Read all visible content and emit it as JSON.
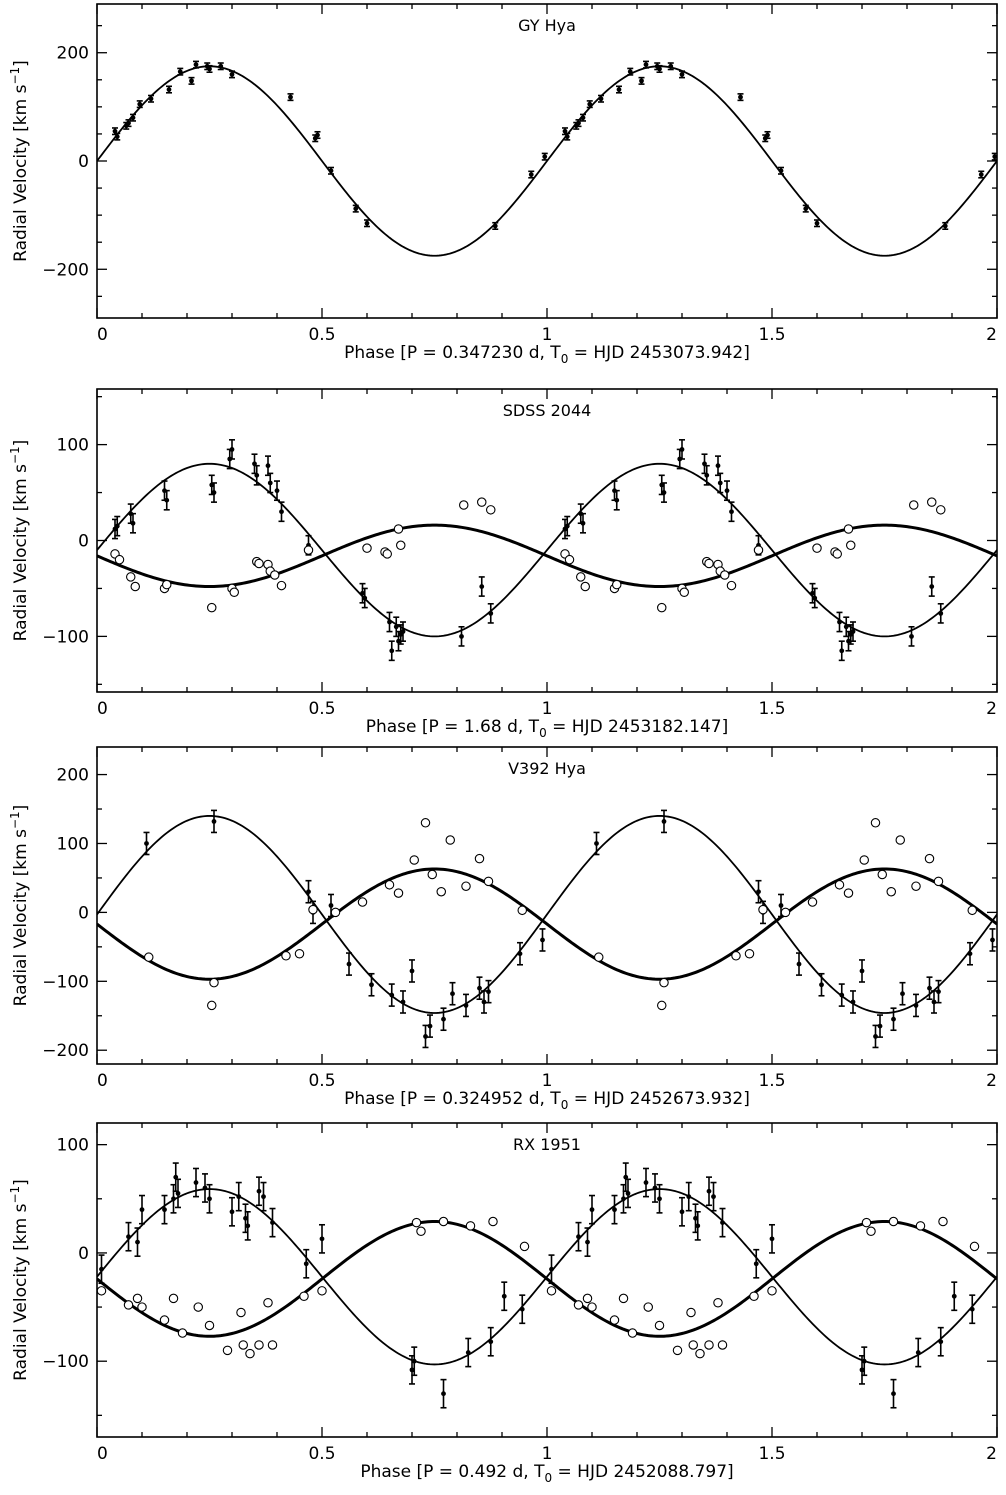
{
  "chart_data": [
    {
      "type": "scatter",
      "title": "GY Hya",
      "xlabel": {
        "main": "Phase [P = 0.347230 d, T",
        "sub": "0",
        "rest": " = HJD 2453073.942]"
      },
      "ylabel": {
        "main": "Radial Velocity [km s",
        "sup": "−1",
        "rest": "]"
      },
      "xlim": [
        0,
        2
      ],
      "ylim": [
        -290,
        290
      ],
      "xticks": [
        0,
        0.5,
        1,
        1.5,
        2
      ],
      "xticklabels": [
        "0",
        "0.5",
        "1",
        "1.5",
        "2"
      ],
      "yticks": [
        -200,
        0,
        200
      ],
      "yticklabels": [
        "−200",
        "0",
        "200"
      ],
      "grid": false,
      "curves": [
        {
          "gamma": 0,
          "K": 175,
          "phase_offset": 0,
          "style": "thin"
        }
      ],
      "series": [
        {
          "marker": "filled-errorbar",
          "x": [
            0.04,
            0.045,
            0.065,
            0.07,
            0.08,
            0.095,
            0.12,
            0.16,
            0.185,
            0.21,
            0.22,
            0.245,
            0.25,
            0.275,
            0.3,
            0.43,
            0.485,
            0.49,
            0.52,
            0.575,
            0.6,
            0.885,
            0.965,
            0.995,
            1.04,
            1.045,
            1.065,
            1.07,
            1.08,
            1.095,
            1.12,
            1.16,
            1.185,
            1.21,
            1.22,
            1.245,
            1.25,
            1.275,
            1.3,
            1.43,
            1.485,
            1.49,
            1.52,
            1.575,
            1.6,
            1.885,
            1.965,
            1.995
          ],
          "y": [
            55,
            45,
            65,
            70,
            80,
            105,
            115,
            132,
            165,
            148,
            178,
            175,
            170,
            175,
            160,
            118,
            42,
            48,
            -18,
            -88,
            -115,
            -120,
            -25,
            8,
            55,
            45,
            65,
            70,
            80,
            105,
            115,
            132,
            165,
            148,
            178,
            175,
            170,
            175,
            160,
            118,
            42,
            48,
            -18,
            -88,
            -115,
            -120,
            -25,
            8
          ],
          "err": 6
        }
      ]
    },
    {
      "type": "scatter",
      "title": "SDSS 2044",
      "xlabel": {
        "main": "Phase [P = 1.68 d, T",
        "sub": "0",
        "rest": " = HJD 2453182.147]"
      },
      "ylabel": {
        "main": "Radial Velocity [km s",
        "sup": "−1",
        "rest": "]"
      },
      "xlim": [
        0,
        2
      ],
      "ylim": [
        -158,
        158
      ],
      "xticks": [
        0,
        0.5,
        1,
        1.5,
        2
      ],
      "xticklabels": [
        "0",
        "0.5",
        "1",
        "1.5",
        "2"
      ],
      "yticks": [
        -100,
        0,
        100
      ],
      "yticklabels": [
        "−100",
        "0",
        "100"
      ],
      "grid": false,
      "curves": [
        {
          "gamma": -10,
          "K": 90,
          "phase_offset": 0,
          "style": "thin"
        },
        {
          "gamma": -16,
          "K": 32,
          "phase_offset": 0.5,
          "style": "thick"
        }
      ],
      "series": [
        {
          "marker": "filled-errorbar",
          "x": [
            0.04,
            0.045,
            0.075,
            0.08,
            0.15,
            0.155,
            0.255,
            0.26,
            0.295,
            0.3,
            0.35,
            0.355,
            0.38,
            0.385,
            0.4,
            0.41,
            0.47,
            0.59,
            0.595,
            0.65,
            0.655,
            0.665,
            0.67,
            0.675,
            0.68,
            0.81,
            0.855,
            0.875,
            1.04,
            1.045,
            1.075,
            1.08,
            1.15,
            1.155,
            1.255,
            1.26,
            1.295,
            1.3,
            1.35,
            1.355,
            1.38,
            1.385,
            1.4,
            1.41,
            1.47,
            1.59,
            1.595,
            1.65,
            1.655,
            1.665,
            1.67,
            1.675,
            1.68,
            1.81,
            1.855,
            1.875
          ],
          "y": [
            12,
            15,
            28,
            18,
            52,
            42,
            58,
            50,
            85,
            95,
            80,
            68,
            78,
            60,
            52,
            30,
            -5,
            -55,
            -60,
            -85,
            -115,
            -90,
            -105,
            -98,
            -95,
            -100,
            -48,
            -76,
            12,
            15,
            28,
            18,
            52,
            42,
            58,
            50,
            85,
            95,
            80,
            68,
            78,
            60,
            52,
            30,
            -5,
            -55,
            -60,
            -85,
            -115,
            -90,
            -105,
            -98,
            -95,
            -100,
            -48,
            -76
          ],
          "err": 10
        },
        {
          "marker": "open-circle",
          "x": [
            0.04,
            0.05,
            0.075,
            0.085,
            0.15,
            0.155,
            0.255,
            0.3,
            0.305,
            0.355,
            0.36,
            0.38,
            0.385,
            0.395,
            0.41,
            0.47,
            0.6,
            0.64,
            0.645,
            0.67,
            0.675,
            0.815,
            0.855,
            0.875,
            1.04,
            1.05,
            1.075,
            1.085,
            1.15,
            1.155,
            1.255,
            1.3,
            1.305,
            1.355,
            1.36,
            1.38,
            1.385,
            1.395,
            1.41,
            1.47,
            1.6,
            1.64,
            1.645,
            1.67,
            1.675,
            1.815,
            1.855,
            1.875
          ],
          "y": [
            -14,
            -20,
            -38,
            -48,
            -50,
            -46,
            -70,
            -50,
            -54,
            -22,
            -24,
            -25,
            -32,
            -36,
            -47,
            -10,
            -8,
            -12,
            -14,
            12,
            -5,
            37,
            40,
            32,
            -14,
            -20,
            -38,
            -48,
            -50,
            -46,
            -70,
            -50,
            -54,
            -22,
            -24,
            -25,
            -32,
            -36,
            -47,
            -10,
            -8,
            -12,
            -14,
            12,
            -5,
            37,
            40,
            32
          ]
        }
      ]
    },
    {
      "type": "scatter",
      "title": "V392 Hya",
      "xlabel": {
        "main": "Phase [P = 0.324952 d, T",
        "sub": "0",
        "rest": " = HJD 2452673.932]"
      },
      "ylabel": {
        "main": "Radial Velocity [km s",
        "sup": "−1",
        "rest": "]"
      },
      "xlim": [
        0,
        2
      ],
      "ylim": [
        -220,
        240
      ],
      "xticks": [
        0,
        0.5,
        1,
        1.5,
        2
      ],
      "xticklabels": [
        "0",
        "0.5",
        "1",
        "1.5",
        "2"
      ],
      "yticks": [
        -200,
        -100,
        0,
        100,
        200
      ],
      "yticklabels": [
        "−200",
        "−100",
        "0",
        "100",
        "200"
      ],
      "grid": false,
      "curves": [
        {
          "gamma": -3,
          "K": 143,
          "phase_offset": 0,
          "style": "thin"
        },
        {
          "gamma": -17,
          "K": 80,
          "phase_offset": 0.5,
          "style": "thick"
        }
      ],
      "series": [
        {
          "marker": "filled-errorbar",
          "x": [
            0.11,
            0.26,
            0.47,
            0.48,
            0.52,
            0.56,
            0.61,
            0.655,
            0.68,
            0.7,
            0.73,
            0.74,
            0.77,
            0.79,
            0.82,
            0.85,
            0.86,
            0.87,
            0.94,
            0.99,
            1.11,
            1.26,
            1.47,
            1.48,
            1.52,
            1.56,
            1.61,
            1.655,
            1.68,
            1.7,
            1.73,
            1.74,
            1.77,
            1.79,
            1.82,
            1.85,
            1.86,
            1.87,
            1.94,
            1.99
          ],
          "y": [
            100,
            132,
            30,
            0,
            10,
            -75,
            -105,
            -120,
            -130,
            -85,
            -180,
            -165,
            -155,
            -118,
            -135,
            -110,
            -130,
            -115,
            -60,
            -40,
            100,
            132,
            30,
            0,
            10,
            -75,
            -105,
            -120,
            -130,
            -85,
            -180,
            -165,
            -155,
            -118,
            -135,
            -110,
            -130,
            -115,
            -60,
            -40
          ],
          "err": 16
        },
        {
          "marker": "open-circle",
          "x": [
            0.115,
            0.255,
            0.26,
            0.42,
            0.45,
            0.48,
            0.53,
            0.59,
            0.65,
            0.67,
            0.705,
            0.73,
            0.745,
            0.765,
            0.785,
            0.82,
            0.85,
            0.87,
            0.945,
            1.115,
            1.255,
            1.26,
            1.42,
            1.45,
            1.48,
            1.53,
            1.59,
            1.65,
            1.67,
            1.705,
            1.73,
            1.745,
            1.765,
            1.785,
            1.82,
            1.85,
            1.87,
            1.945
          ],
          "y": [
            -65,
            -135,
            -102,
            -63,
            -60,
            4,
            0,
            15,
            40,
            28,
            76,
            130,
            55,
            30,
            105,
            38,
            78,
            45,
            3,
            -65,
            -135,
            -102,
            -63,
            -60,
            4,
            0,
            15,
            40,
            28,
            76,
            130,
            55,
            30,
            105,
            38,
            78,
            45,
            3
          ]
        }
      ]
    },
    {
      "type": "scatter",
      "title": "RX 1951",
      "xlabel": {
        "main": "Phase [P = 0.492 d, T",
        "sub": "0",
        "rest": " = HJD 2452088.797]"
      },
      "ylabel": {
        "main": "Radial Velocity [km s",
        "sup": "−1",
        "rest": "]"
      },
      "xlim": [
        0,
        2
      ],
      "ylim": [
        -170,
        120
      ],
      "xticks": [
        0,
        0.5,
        1,
        1.5,
        2
      ],
      "xticklabels": [
        "0",
        "0.5",
        "1",
        "1.5",
        "2"
      ],
      "yticks": [
        -100,
        0,
        100
      ],
      "yticklabels": [
        "−100",
        "0",
        "100"
      ],
      "grid": false,
      "curves": [
        {
          "gamma": -22,
          "K": 81,
          "phase_offset": 0,
          "style": "thin"
        },
        {
          "gamma": -24,
          "K": 53,
          "phase_offset": 0.5,
          "style": "thick"
        }
      ],
      "series": [
        {
          "marker": "filled-errorbar",
          "x": [
            0.01,
            0.07,
            0.09,
            0.1,
            0.15,
            0.17,
            0.175,
            0.18,
            0.22,
            0.24,
            0.25,
            0.3,
            0.315,
            0.33,
            0.335,
            0.36,
            0.37,
            0.39,
            0.465,
            0.5,
            0.7,
            0.705,
            0.77,
            0.825,
            0.875,
            0.905,
            0.945,
            1.01,
            1.07,
            1.09,
            1.1,
            1.15,
            1.17,
            1.175,
            1.18,
            1.22,
            1.24,
            1.25,
            1.3,
            1.315,
            1.33,
            1.335,
            1.36,
            1.37,
            1.39,
            1.465,
            1.5,
            1.7,
            1.705,
            1.77,
            1.825,
            1.875,
            1.905,
            1.945
          ],
          "y": [
            -15,
            15,
            10,
            40,
            40,
            50,
            70,
            55,
            65,
            60,
            50,
            38,
            52,
            32,
            25,
            57,
            52,
            28,
            -10,
            13,
            -108,
            -100,
            -130,
            -92,
            -82,
            -40,
            -52,
            -15,
            15,
            10,
            40,
            40,
            50,
            70,
            55,
            65,
            60,
            50,
            38,
            52,
            32,
            25,
            57,
            52,
            28,
            -10,
            13,
            -108,
            -100,
            -130,
            -92,
            -82,
            -40,
            -52
          ],
          "err": 13
        },
        {
          "marker": "open-circle",
          "x": [
            0.01,
            0.07,
            0.09,
            0.1,
            0.15,
            0.17,
            0.19,
            0.225,
            0.25,
            0.29,
            0.32,
            0.325,
            0.34,
            0.36,
            0.38,
            0.39,
            0.46,
            0.5,
            0.71,
            0.72,
            0.77,
            0.83,
            0.88,
            0.95,
            1.01,
            1.07,
            1.09,
            1.1,
            1.15,
            1.17,
            1.19,
            1.225,
            1.25,
            1.29,
            1.32,
            1.325,
            1.34,
            1.36,
            1.38,
            1.39,
            1.46,
            1.5,
            1.71,
            1.72,
            1.77,
            1.83,
            1.88,
            1.95
          ],
          "y": [
            -35,
            -48,
            -42,
            -50,
            -62,
            -42,
            -74,
            -50,
            -67,
            -90,
            -55,
            -85,
            -93,
            -85,
            -46,
            -85,
            -40,
            -35,
            28,
            20,
            29,
            25,
            29,
            6,
            -35,
            -48,
            -42,
            -50,
            -62,
            -42,
            -74,
            -50,
            -67,
            -90,
            -55,
            -85,
            -93,
            -85,
            -46,
            -85,
            -40,
            -35,
            28,
            20,
            29,
            25,
            29,
            6
          ]
        }
      ]
    }
  ]
}
